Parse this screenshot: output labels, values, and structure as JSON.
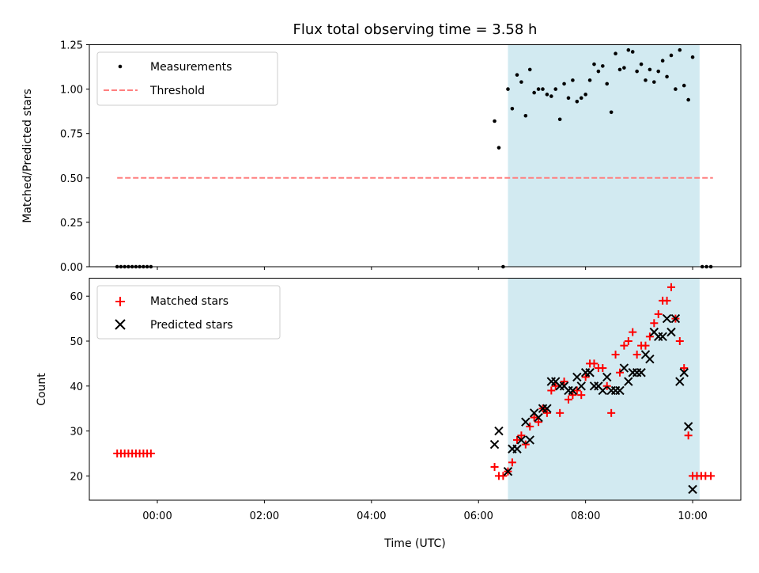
{
  "title": "Flux total observing time = 3.58 h",
  "colors": {
    "measurement": "#000000",
    "threshold": "#ff7f7f",
    "matched": "#ff0000",
    "predicted": "#000000",
    "span": "#add8e6"
  },
  "chart_data": [
    {
      "type": "scatter",
      "name": "ratio",
      "ylabel": "Matched/Predicted stars",
      "ylim": [
        0,
        1.25
      ],
      "xlim_hours": [
        -1.27,
        10.9
      ],
      "yticks": [
        0.0,
        0.25,
        0.5,
        0.75,
        1.0,
        1.25
      ],
      "ytick_labels": [
        "0.00",
        "0.25",
        "0.50",
        "0.75",
        "1.00",
        "1.25"
      ],
      "span_hours": [
        6.55,
        10.13
      ],
      "legend": {
        "placement": "upper left",
        "entries": [
          "Measurements",
          "Threshold"
        ]
      },
      "threshold": {
        "name": "Threshold",
        "y": 0.5,
        "x_range_hours": [
          -0.75,
          10.38
        ]
      },
      "series": [
        {
          "name": "Measurements",
          "points": [
            [
              -0.75,
              0
            ],
            [
              -0.68,
              0
            ],
            [
              -0.61,
              0
            ],
            [
              -0.54,
              0
            ],
            [
              -0.47,
              0
            ],
            [
              -0.4,
              0
            ],
            [
              -0.33,
              0
            ],
            [
              -0.26,
              0
            ],
            [
              -0.19,
              0
            ],
            [
              -0.12,
              0
            ],
            [
              6.3,
              0.82
            ],
            [
              6.38,
              0.67
            ],
            [
              6.46,
              0.0
            ],
            [
              6.55,
              1.0
            ],
            [
              6.63,
              0.89
            ],
            [
              6.72,
              1.08
            ],
            [
              6.8,
              1.04
            ],
            [
              6.88,
              0.85
            ],
            [
              6.96,
              1.11
            ],
            [
              7.04,
              0.98
            ],
            [
              7.12,
              1.0
            ],
            [
              7.2,
              1.0
            ],
            [
              7.28,
              0.97
            ],
            [
              7.36,
              0.96
            ],
            [
              7.44,
              1.0
            ],
            [
              7.52,
              0.83
            ],
            [
              7.6,
              1.03
            ],
            [
              7.68,
              0.95
            ],
            [
              7.76,
              1.05
            ],
            [
              7.84,
              0.93
            ],
            [
              7.92,
              0.95
            ],
            [
              8.0,
              0.97
            ],
            [
              8.08,
              1.05
            ],
            [
              8.16,
              1.14
            ],
            [
              8.24,
              1.1
            ],
            [
              8.32,
              1.13
            ],
            [
              8.4,
              1.03
            ],
            [
              8.48,
              0.87
            ],
            [
              8.56,
              1.2
            ],
            [
              8.64,
              1.11
            ],
            [
              8.72,
              1.12
            ],
            [
              8.8,
              1.22
            ],
            [
              8.88,
              1.21
            ],
            [
              8.96,
              1.1
            ],
            [
              9.04,
              1.14
            ],
            [
              9.12,
              1.05
            ],
            [
              9.2,
              1.11
            ],
            [
              9.28,
              1.04
            ],
            [
              9.36,
              1.1
            ],
            [
              9.44,
              1.16
            ],
            [
              9.52,
              1.07
            ],
            [
              9.6,
              1.19
            ],
            [
              9.68,
              1.0
            ],
            [
              9.76,
              1.22
            ],
            [
              9.84,
              1.02
            ],
            [
              9.92,
              0.94
            ],
            [
              10.0,
              1.18
            ],
            [
              10.18,
              0
            ],
            [
              10.26,
              0
            ],
            [
              10.34,
              0
            ]
          ]
        }
      ],
      "x_tick_labels_shown": false
    },
    {
      "type": "scatter",
      "name": "counts",
      "ylabel": "Count",
      "xlabel": "Time (UTC)",
      "ylim": [
        14.6,
        64
      ],
      "xlim_hours": [
        -1.27,
        10.9
      ],
      "yticks": [
        20,
        30,
        40,
        50,
        60
      ],
      "ytick_labels": [
        "20",
        "30",
        "40",
        "50",
        "60"
      ],
      "xticks_hours": [
        0,
        2,
        4,
        6,
        8,
        10
      ],
      "xtick_labels": [
        "00:00",
        "02:00",
        "04:00",
        "06:00",
        "08:00",
        "10:00"
      ],
      "span_hours": [
        6.55,
        10.13
      ],
      "legend": {
        "placement": "upper left",
        "entries": [
          "Matched stars",
          "Predicted stars"
        ]
      },
      "series": [
        {
          "name": "Matched stars",
          "marker": "plus",
          "points": [
            [
              -0.75,
              25
            ],
            [
              -0.68,
              25
            ],
            [
              -0.61,
              25
            ],
            [
              -0.54,
              25
            ],
            [
              -0.47,
              25
            ],
            [
              -0.4,
              25
            ],
            [
              -0.33,
              25
            ],
            [
              -0.26,
              25
            ],
            [
              -0.19,
              25
            ],
            [
              -0.12,
              25
            ],
            [
              6.3,
              22
            ],
            [
              6.38,
              20
            ],
            [
              6.46,
              20
            ],
            [
              6.55,
              21
            ],
            [
              6.63,
              23
            ],
            [
              6.72,
              28
            ],
            [
              6.8,
              29
            ],
            [
              6.88,
              27
            ],
            [
              6.96,
              31
            ],
            [
              7.04,
              33
            ],
            [
              7.12,
              32
            ],
            [
              7.2,
              35
            ],
            [
              7.28,
              34
            ],
            [
              7.36,
              39
            ],
            [
              7.44,
              40
            ],
            [
              7.52,
              34
            ],
            [
              7.6,
              41
            ],
            [
              7.68,
              37
            ],
            [
              7.76,
              38
            ],
            [
              7.84,
              39
            ],
            [
              7.92,
              38
            ],
            [
              8.0,
              42
            ],
            [
              8.08,
              45
            ],
            [
              8.16,
              45
            ],
            [
              8.24,
              44
            ],
            [
              8.32,
              44
            ],
            [
              8.4,
              40
            ],
            [
              8.48,
              34
            ],
            [
              8.56,
              47
            ],
            [
              8.64,
              43
            ],
            [
              8.72,
              49
            ],
            [
              8.8,
              50
            ],
            [
              8.88,
              52
            ],
            [
              8.96,
              47
            ],
            [
              9.04,
              49
            ],
            [
              9.12,
              49
            ],
            [
              9.2,
              51
            ],
            [
              9.28,
              54
            ],
            [
              9.36,
              56
            ],
            [
              9.44,
              59
            ],
            [
              9.52,
              59
            ],
            [
              9.6,
              62
            ],
            [
              9.68,
              55
            ],
            [
              9.76,
              50
            ],
            [
              9.84,
              44
            ],
            [
              9.92,
              29
            ],
            [
              10.0,
              20
            ],
            [
              10.08,
              20
            ],
            [
              10.16,
              20
            ],
            [
              10.24,
              20
            ],
            [
              10.34,
              20
            ]
          ]
        },
        {
          "name": "Predicted stars",
          "marker": "x",
          "points": [
            [
              6.3,
              27
            ],
            [
              6.38,
              30
            ],
            [
              6.55,
              21
            ],
            [
              6.63,
              26
            ],
            [
              6.72,
              26
            ],
            [
              6.8,
              28
            ],
            [
              6.88,
              32
            ],
            [
              6.96,
              28
            ],
            [
              7.04,
              34
            ],
            [
              7.12,
              33
            ],
            [
              7.2,
              35
            ],
            [
              7.28,
              35
            ],
            [
              7.36,
              41
            ],
            [
              7.44,
              41
            ],
            [
              7.52,
              40
            ],
            [
              7.6,
              40
            ],
            [
              7.68,
              39
            ],
            [
              7.76,
              39
            ],
            [
              7.84,
              42
            ],
            [
              7.92,
              40
            ],
            [
              8.0,
              43
            ],
            [
              8.08,
              43
            ],
            [
              8.16,
              40
            ],
            [
              8.24,
              40
            ],
            [
              8.32,
              39
            ],
            [
              8.4,
              42
            ],
            [
              8.48,
              39
            ],
            [
              8.56,
              39
            ],
            [
              8.64,
              39
            ],
            [
              8.72,
              44
            ],
            [
              8.8,
              41
            ],
            [
              8.88,
              43
            ],
            [
              8.96,
              43
            ],
            [
              9.04,
              43
            ],
            [
              9.12,
              47
            ],
            [
              9.2,
              46
            ],
            [
              9.28,
              52
            ],
            [
              9.36,
              51
            ],
            [
              9.44,
              51
            ],
            [
              9.52,
              55
            ],
            [
              9.6,
              52
            ],
            [
              9.68,
              55
            ],
            [
              9.76,
              41
            ],
            [
              9.84,
              43
            ],
            [
              9.92,
              31
            ],
            [
              10.0,
              17
            ]
          ]
        }
      ]
    }
  ]
}
